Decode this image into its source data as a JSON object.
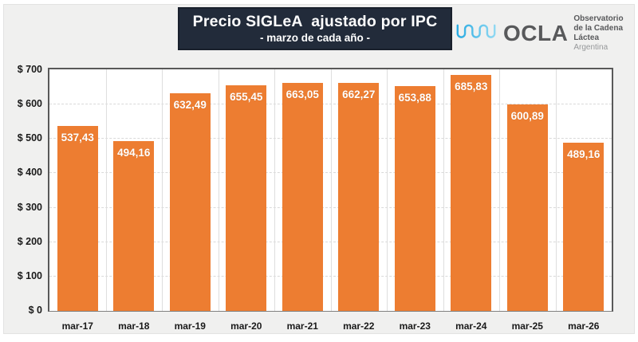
{
  "header": {
    "title": "Precio SIGLeA  ajustado por IPC",
    "subtitle": "- marzo de cada año -",
    "logo": {
      "brand": "OCLA",
      "line1": "Observatorio",
      "line2": "de la Cadena Láctea",
      "line3": "Argentina"
    }
  },
  "chart_data": {
    "type": "bar",
    "title": "Precio SIGLeA ajustado por IPC - marzo de cada año -",
    "categories": [
      "mar-17",
      "mar-18",
      "mar-19",
      "mar-20",
      "mar-21",
      "mar-22",
      "mar-23",
      "mar-24",
      "mar-25",
      "mar-26"
    ],
    "values": [
      537.43,
      494.16,
      632.49,
      655.45,
      663.05,
      662.27,
      653.88,
      685.83,
      600.89,
      489.16
    ],
    "value_labels": [
      "537,43",
      "494,16",
      "632,49",
      "655,45",
      "663,05",
      "662,27",
      "653,88",
      "685,83",
      "600,89",
      "489,16"
    ],
    "xlabel": "",
    "ylabel": "",
    "ylim": [
      0,
      700
    ],
    "ytick_step": 100,
    "ytick_labels": [
      "$ 0",
      "$ 100",
      "$ 200",
      "$ 300",
      "$ 400",
      "$ 500",
      "$ 600",
      "$ 700"
    ],
    "grid": true,
    "legend": false,
    "bar_color": "#ed7d31",
    "label_color": "#ffffff"
  },
  "colors": {
    "canvas_bg": "#f0f0ef",
    "plot_bg": "#ffffff",
    "plot_border": "#595959",
    "gridline": "#d9d9d9",
    "title_bg": "#222b3a",
    "title_text": "#ffffff",
    "logo_gray": "#58595b",
    "logo_light_gray": "#96989a",
    "logo_wave_blue": "#29abe2",
    "logo_wave_light": "#8fd8f2"
  }
}
